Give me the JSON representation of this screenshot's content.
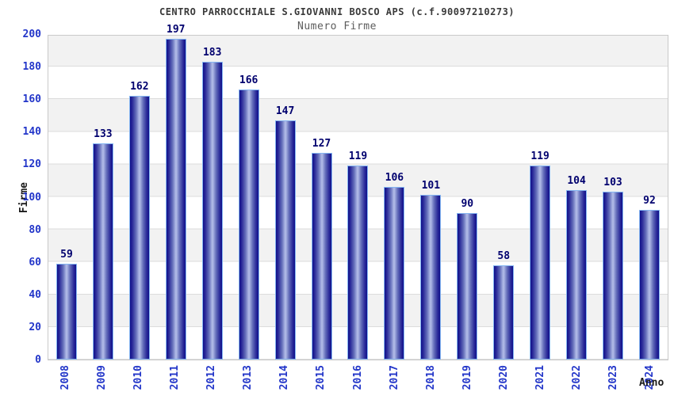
{
  "chart_data": {
    "type": "bar",
    "title": "CENTRO PARROCCHIALE S.GIOVANNI BOSCO APS (c.f.90097210273)",
    "subtitle": "Numero Firme",
    "xlabel": "Anno",
    "ylabel": "Firme",
    "categories": [
      "2008",
      "2009",
      "2010",
      "2011",
      "2012",
      "2013",
      "2014",
      "2015",
      "2016",
      "2017",
      "2018",
      "2019",
      "2020",
      "2021",
      "2022",
      "2023",
      "2024"
    ],
    "values": [
      59,
      133,
      162,
      197,
      183,
      166,
      147,
      127,
      119,
      106,
      101,
      90,
      58,
      119,
      104,
      103,
      92
    ],
    "ylim": [
      0,
      200
    ],
    "ytick_step": 20,
    "grid": "horizontal alternating bands, gray band between odd 20-unit intervals",
    "legend": "none",
    "bar_value_labels": true,
    "x_labels_rotation": "90deg counterclockwise",
    "colors": {
      "bar_dark": "#10108a",
      "bar_light": "#aeb8e6",
      "bar_border": "#85b6f2",
      "value_label": "#00006e",
      "tick_label": "#2336c9",
      "band_gray": "#f2f2f2",
      "band_white": "#ffffff",
      "grid_line": "#dcdcdc",
      "axis_line": "#c9c9c9",
      "title": "#3a3a3a",
      "subtitle": "#5c5c5c",
      "axis_title": "#1a1a1a"
    }
  }
}
